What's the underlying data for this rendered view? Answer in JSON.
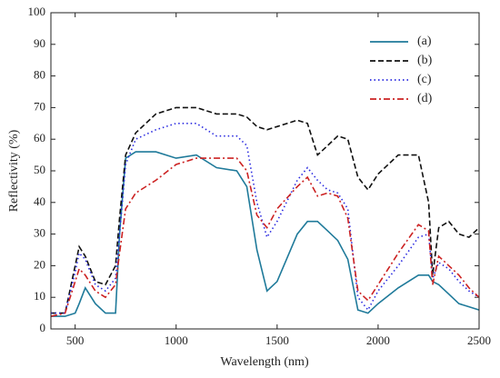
{
  "chart_data": {
    "type": "line",
    "xlabel": "Wavelength (nm)",
    "ylabel": "Reflectivity (%)",
    "x": [
      380,
      450,
      500,
      520,
      550,
      600,
      650,
      700,
      720,
      750,
      800,
      900,
      1000,
      1100,
      1200,
      1300,
      1350,
      1400,
      1450,
      1500,
      1600,
      1650,
      1700,
      1750,
      1800,
      1850,
      1900,
      1950,
      2000,
      2100,
      2200,
      2250,
      2270,
      2300,
      2350,
      2400,
      2450,
      2500
    ],
    "series": [
      {
        "name": "(a)",
        "color": "#1f7a9a",
        "dash": "solid",
        "values": [
          4,
          4,
          5,
          8,
          13,
          8,
          5,
          5,
          30,
          54,
          56,
          56,
          54,
          55,
          51,
          50,
          45,
          25,
          12,
          15,
          30,
          34,
          34,
          31,
          28,
          22,
          6,
          5,
          8,
          13,
          17,
          17,
          15,
          14,
          11,
          8,
          7,
          6
        ]
      },
      {
        "name": "(b)",
        "color": "#111111",
        "dash": "dashed",
        "values": [
          5,
          5,
          20,
          26,
          23,
          15,
          14,
          20,
          35,
          55,
          62,
          68,
          70,
          70,
          68,
          68,
          67,
          64,
          63,
          64,
          66,
          65,
          55,
          58,
          61,
          60,
          48,
          44,
          49,
          55,
          55,
          40,
          17,
          32,
          34,
          30,
          29,
          32
        ]
      },
      {
        "name": "(c)",
        "color": "#2a2ae0",
        "dash": "dotted",
        "values": [
          5,
          5,
          18,
          24,
          22,
          14,
          12,
          16,
          30,
          52,
          60,
          63,
          65,
          65,
          61,
          61,
          58,
          40,
          29,
          34,
          47,
          51,
          47,
          44,
          43,
          38,
          10,
          6,
          12,
          20,
          29,
          30,
          16,
          21,
          19,
          15,
          12,
          10
        ]
      },
      {
        "name": "(d)",
        "color": "#cc2222",
        "dash": "dashdot",
        "values": [
          4,
          5,
          15,
          19,
          17,
          12,
          10,
          14,
          24,
          38,
          43,
          47,
          52,
          54,
          54,
          54,
          50,
          36,
          32,
          38,
          45,
          48,
          42,
          43,
          42,
          35,
          12,
          9,
          14,
          24,
          33,
          31,
          14,
          23,
          20,
          17,
          13,
          10
        ]
      }
    ],
    "xlim": [
      380,
      2500
    ],
    "ylim": [
      0,
      100
    ],
    "xticks": [
      500,
      1000,
      1500,
      2000,
      2500
    ],
    "yticks": [
      0,
      10,
      20,
      30,
      40,
      50,
      60,
      70,
      80,
      90,
      100
    ],
    "legend": "upper right",
    "grid": false
  }
}
